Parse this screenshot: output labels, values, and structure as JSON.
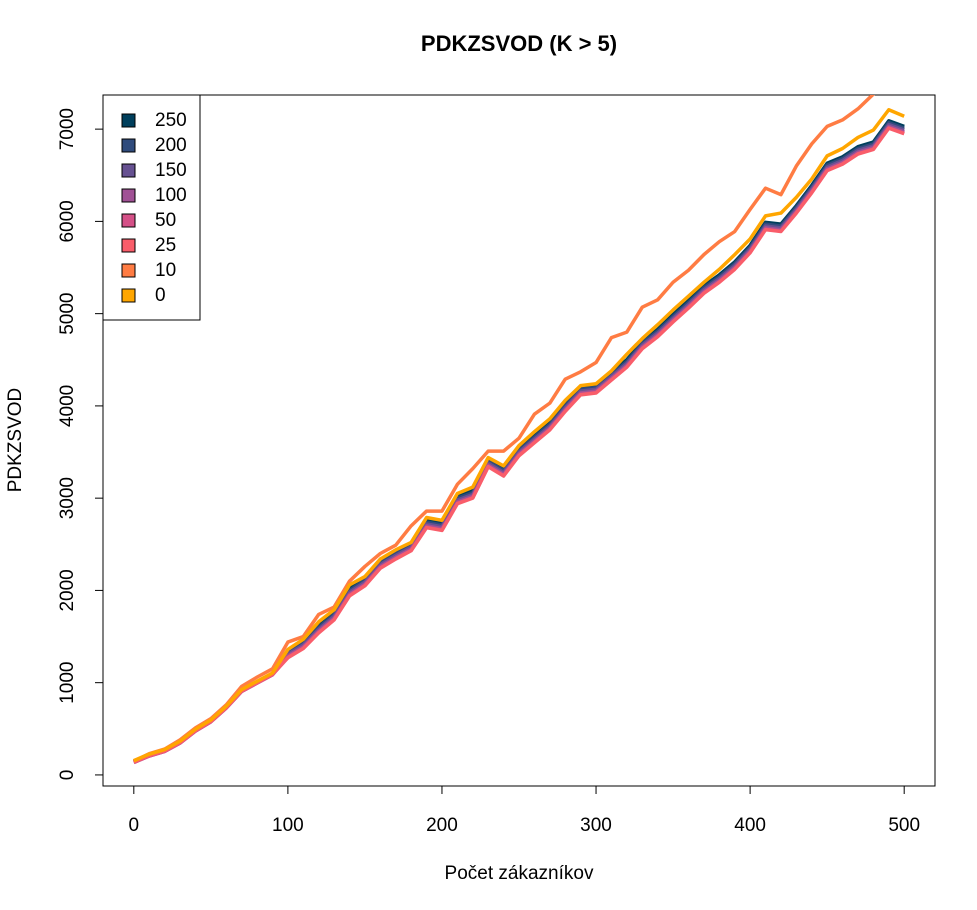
{
  "chart_data": {
    "type": "line",
    "title": "PDKZSVOD (K > 5)",
    "x_label": "Počet zákazníkov",
    "y_label": "PDKZSVOD",
    "x": [
      0,
      10,
      20,
      30,
      40,
      50,
      60,
      70,
      80,
      90,
      100,
      110,
      120,
      130,
      140,
      150,
      160,
      170,
      180,
      190,
      200,
      210,
      220,
      230,
      240,
      250,
      260,
      270,
      280,
      290,
      300,
      310,
      320,
      330,
      340,
      350,
      360,
      370,
      380,
      390,
      400,
      410,
      420,
      430,
      440,
      450,
      460,
      470,
      480,
      490,
      500
    ],
    "series": [
      {
        "name": "250",
        "color": "#003F5C",
        "values": [
          150,
          220,
          270,
          360,
          490,
          590,
          740,
          920,
          1010,
          1100,
          1350,
          1450,
          1620,
          1760,
          2020,
          2130,
          2320,
          2420,
          2510,
          2760,
          2730,
          3020,
          3080,
          3420,
          3320,
          3540,
          3680,
          3820,
          4020,
          4200,
          4220,
          4360,
          4500,
          4700,
          4830,
          4990,
          5140,
          5300,
          5420,
          5560,
          5740,
          5990,
          5970,
          6170,
          6390,
          6630,
          6700,
          6810,
          6860,
          7090,
          7030
        ]
      },
      {
        "name": "200",
        "color": "#2F4B7C",
        "values": [
          145,
          215,
          265,
          355,
          485,
          585,
          735,
          915,
          1005,
          1095,
          1330,
          1430,
          1600,
          1740,
          2000,
          2110,
          2300,
          2400,
          2490,
          2740,
          2710,
          3000,
          3060,
          3400,
          3300,
          3520,
          3660,
          3800,
          4000,
          4180,
          4200,
          4340,
          4480,
          4680,
          4810,
          4970,
          5120,
          5280,
          5400,
          5540,
          5720,
          5970,
          5950,
          6150,
          6370,
          6610,
          6680,
          6790,
          6840,
          7070,
          7010
        ]
      },
      {
        "name": "150",
        "color": "#665191",
        "values": [
          140,
          210,
          260,
          350,
          480,
          580,
          730,
          910,
          1000,
          1090,
          1310,
          1410,
          1580,
          1720,
          1980,
          2090,
          2280,
          2380,
          2470,
          2720,
          2690,
          2980,
          3040,
          3380,
          3280,
          3500,
          3640,
          3780,
          3980,
          4160,
          4180,
          4320,
          4460,
          4660,
          4790,
          4950,
          5100,
          5260,
          5380,
          5520,
          5700,
          5950,
          5930,
          6130,
          6350,
          6590,
          6660,
          6770,
          6820,
          7050,
          6990
        ]
      },
      {
        "name": "100",
        "color": "#A05195",
        "values": [
          135,
          205,
          255,
          345,
          475,
          575,
          725,
          905,
          995,
          1085,
          1290,
          1390,
          1560,
          1700,
          1960,
          2070,
          2260,
          2360,
          2450,
          2700,
          2670,
          2960,
          3020,
          3360,
          3260,
          3480,
          3620,
          3760,
          3960,
          4140,
          4160,
          4300,
          4440,
          4640,
          4770,
          4930,
          5080,
          5240,
          5360,
          5500,
          5680,
          5930,
          5910,
          6110,
          6330,
          6570,
          6640,
          6750,
          6800,
          7030,
          6970
        ]
      },
      {
        "name": "50",
        "color": "#D45087",
        "values": [
          135,
          205,
          255,
          345,
          475,
          575,
          725,
          905,
          995,
          1085,
          1275,
          1375,
          1545,
          1685,
          1945,
          2055,
          2245,
          2345,
          2435,
          2685,
          2655,
          2945,
          3005,
          3345,
          3245,
          3465,
          3605,
          3745,
          3945,
          4125,
          4145,
          4285,
          4425,
          4625,
          4755,
          4915,
          5065,
          5225,
          5345,
          5485,
          5665,
          5915,
          5895,
          6095,
          6315,
          6555,
          6625,
          6735,
          6785,
          7015,
          6955
        ]
      },
      {
        "name": "25",
        "color": "#F95D6A",
        "values": [
          140,
          210,
          260,
          350,
          480,
          580,
          730,
          910,
          1000,
          1090,
          1270,
          1370,
          1540,
          1680,
          1940,
          2050,
          2240,
          2340,
          2430,
          2680,
          2650,
          2940,
          3000,
          3340,
          3240,
          3460,
          3600,
          3740,
          3940,
          4120,
          4140,
          4280,
          4420,
          4620,
          4750,
          4910,
          5060,
          5220,
          5340,
          5480,
          5660,
          5910,
          5890,
          6090,
          6310,
          6550,
          6620,
          6730,
          6780,
          7010,
          6950
        ]
      },
      {
        "name": "10",
        "color": "#FF7C43",
        "values": [
          150,
          230,
          280,
          380,
          510,
          610,
          760,
          960,
          1060,
          1150,
          1440,
          1500,
          1740,
          1820,
          2100,
          2260,
          2400,
          2490,
          2700,
          2860,
          2860,
          3150,
          3320,
          3510,
          3510,
          3650,
          3910,
          4030,
          4290,
          4370,
          4470,
          4740,
          4800,
          5070,
          5150,
          5340,
          5470,
          5640,
          5780,
          5890,
          6130,
          6360,
          6290,
          6600,
          6840,
          7030,
          7100,
          7220,
          7380,
          7530,
          7600
        ]
      },
      {
        "name": "0",
        "color": "#FFA600",
        "values": [
          155,
          225,
          275,
          365,
          495,
          595,
          745,
          925,
          1015,
          1105,
          1360,
          1470,
          1660,
          1790,
          2060,
          2150,
          2340,
          2440,
          2520,
          2790,
          2760,
          3050,
          3120,
          3440,
          3350,
          3570,
          3720,
          3860,
          4060,
          4220,
          4240,
          4380,
          4560,
          4730,
          4880,
          5040,
          5190,
          5340,
          5480,
          5640,
          5810,
          6060,
          6090,
          6260,
          6460,
          6710,
          6790,
          6910,
          6990,
          7210,
          7140
        ]
      }
    ],
    "xlim": [
      -20,
      520
    ],
    "ylim": [
      -120,
      7370
    ],
    "xticks": [
      0,
      100,
      200,
      300,
      400,
      500
    ],
    "yticks": [
      0,
      1000,
      2000,
      3000,
      4000,
      5000,
      6000,
      7000
    ],
    "legend": "topleft"
  }
}
